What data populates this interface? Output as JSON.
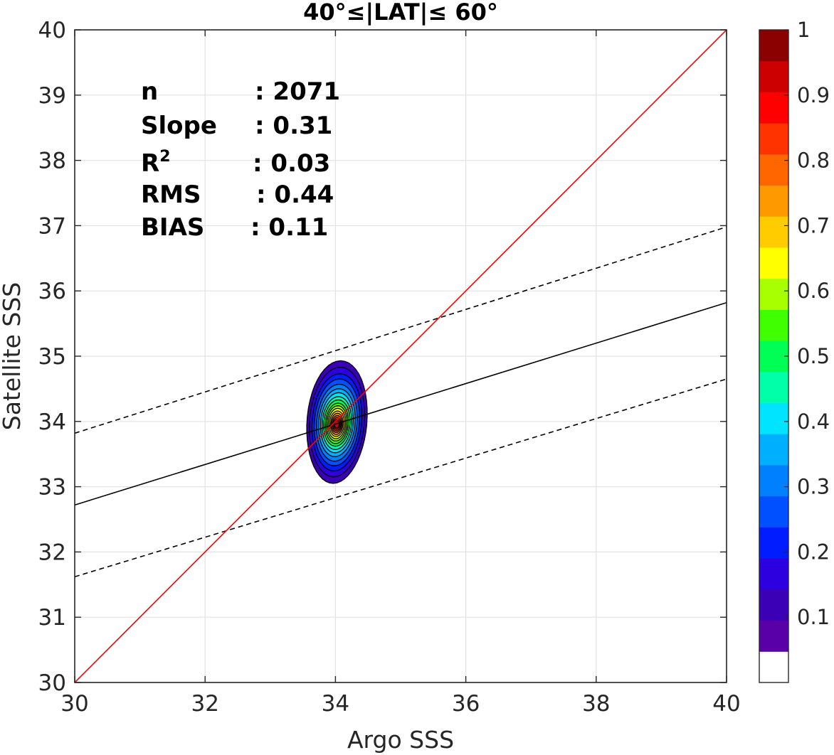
{
  "chart_data": {
    "type": "contour",
    "title": "40°≤|LAT|≤ 60°",
    "xlabel": "Argo SSS",
    "ylabel": "Satellite SSS",
    "xlim": [
      30,
      40
    ],
    "ylim": [
      30,
      40
    ],
    "xticks": [
      "30",
      "32",
      "34",
      "36",
      "38",
      "40"
    ],
    "yticks": [
      "30",
      "31",
      "32",
      "33",
      "34",
      "35",
      "36",
      "37",
      "38",
      "39",
      "40"
    ],
    "grid": true,
    "stats": [
      {
        "name": "n",
        "value": ": 2071"
      },
      {
        "name": "Slope",
        "value": ": 0.31"
      },
      {
        "name": "R",
        "sup": "2",
        "value": ": 0.03"
      },
      {
        "name": "RMS",
        "value": ": 0.44"
      },
      {
        "name": "BIAS",
        "value": ": 0.11"
      }
    ],
    "reference_line": {
      "x": [
        30,
        40
      ],
      "y": [
        30,
        40
      ],
      "color": "#ff0000"
    },
    "fit_line": {
      "x": [
        30,
        40
      ],
      "y": [
        32.72,
        35.82
      ],
      "color": "#000000"
    },
    "fit_bound_upper": {
      "x": [
        30,
        40
      ],
      "y": [
        33.82,
        36.98
      ],
      "color": "#000000",
      "style": "dashed"
    },
    "fit_bound_lower": {
      "x": [
        30,
        40
      ],
      "y": [
        31.62,
        34.65
      ],
      "color": "#000000",
      "style": "dashed"
    },
    "density_center": {
      "x": 34.02,
      "y": 33.95
    },
    "contour_levels": [
      {
        "level": 0.05,
        "rx": 0.46,
        "ry_up": 0.98,
        "ry_down": 0.9,
        "color": "#3b00b5"
      },
      {
        "level": 0.1,
        "rx": 0.42,
        "ry_up": 0.88,
        "ry_down": 0.8,
        "color": "#2d00e0"
      },
      {
        "level": 0.15,
        "rx": 0.38,
        "ry_up": 0.78,
        "ry_down": 0.71,
        "color": "#001cff"
      },
      {
        "level": 0.2,
        "rx": 0.345,
        "ry_up": 0.7,
        "ry_down": 0.63,
        "color": "#0050ff"
      },
      {
        "level": 0.25,
        "rx": 0.31,
        "ry_up": 0.62,
        "ry_down": 0.56,
        "color": "#0080ff"
      },
      {
        "level": 0.3,
        "rx": 0.28,
        "ry_up": 0.55,
        "ry_down": 0.49,
        "color": "#00b0ff"
      },
      {
        "level": 0.35,
        "rx": 0.25,
        "ry_up": 0.49,
        "ry_down": 0.43,
        "color": "#00e4ff"
      },
      {
        "level": 0.4,
        "rx": 0.225,
        "ry_up": 0.43,
        "ry_down": 0.38,
        "color": "#00ffa8"
      },
      {
        "level": 0.45,
        "rx": 0.2,
        "ry_up": 0.38,
        "ry_down": 0.33,
        "color": "#00ff55"
      },
      {
        "level": 0.5,
        "rx": 0.175,
        "ry_up": 0.33,
        "ry_down": 0.29,
        "color": "#40ff00"
      },
      {
        "level": 0.55,
        "rx": 0.155,
        "ry_up": 0.29,
        "ry_down": 0.25,
        "color": "#a8ff00"
      },
      {
        "level": 0.6,
        "rx": 0.135,
        "ry_up": 0.25,
        "ry_down": 0.215,
        "color": "#ffff00"
      },
      {
        "level": 0.65,
        "rx": 0.115,
        "ry_up": 0.21,
        "ry_down": 0.18,
        "color": "#ffcc00"
      },
      {
        "level": 0.7,
        "rx": 0.095,
        "ry_up": 0.175,
        "ry_down": 0.15,
        "color": "#ff9900"
      },
      {
        "level": 0.75,
        "rx": 0.08,
        "ry_up": 0.14,
        "ry_down": 0.12,
        "color": "#ff6600"
      },
      {
        "level": 0.8,
        "rx": 0.065,
        "ry_up": 0.11,
        "ry_down": 0.095,
        "color": "#ff3300"
      },
      {
        "level": 0.85,
        "rx": 0.05,
        "ry_up": 0.085,
        "ry_down": 0.07,
        "color": "#ff0000"
      },
      {
        "level": 0.9,
        "rx": 0.035,
        "ry_up": 0.06,
        "ry_down": 0.05,
        "color": "#cc0000"
      }
    ],
    "colorbar": {
      "min": 0,
      "max": 1,
      "tick_labels": [
        "0.1",
        "0.2",
        "0.3",
        "0.4",
        "0.5",
        "0.6",
        "0.7",
        "0.8",
        "0.9",
        "1"
      ],
      "tick_values": [
        0.1,
        0.2,
        0.3,
        0.4,
        0.5,
        0.6,
        0.7,
        0.8,
        0.9,
        1.0
      ],
      "colors": [
        "#ffffff",
        "#5a00a8",
        "#3b00b5",
        "#2d00e0",
        "#001cff",
        "#0050ff",
        "#0080ff",
        "#00b0ff",
        "#00e4ff",
        "#00ffa8",
        "#00ff55",
        "#40ff00",
        "#a8ff00",
        "#ffff00",
        "#ffcc00",
        "#ff9900",
        "#ff6600",
        "#ff3300",
        "#ff0000",
        "#cc0000",
        "#8b0000"
      ]
    }
  }
}
